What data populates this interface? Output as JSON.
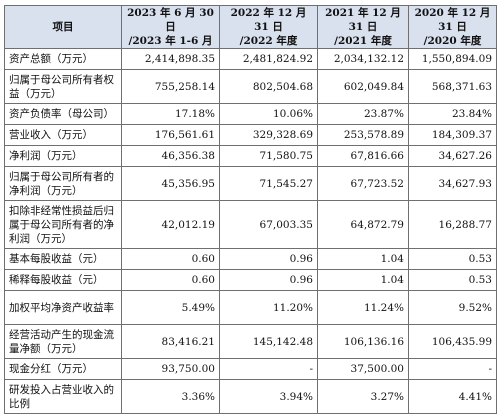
{
  "header": {
    "item": "项目",
    "columns": [
      {
        "line1": "2023 年 6 月 30 日",
        "line2": "/2023 年 1-6 月"
      },
      {
        "line1": "2022 年 12 月 31 日",
        "line2": "/2022 年度"
      },
      {
        "line1": "2021 年 12 月 31 日",
        "line2": "/2021 年度"
      },
      {
        "line1": "2020 年 12 月 31 日",
        "line2": "/2020 年度"
      }
    ]
  },
  "rows": [
    {
      "label": "资产总额（万元）",
      "values": [
        "2,414,898.35",
        "2,481,824.92",
        "2,034,132.12",
        "1,550,894.09"
      ]
    },
    {
      "label": "归属于母公司所有者权益（万元）",
      "values": [
        "755,258.14",
        "802,504.68",
        "602,049.84",
        "568,371.63"
      ]
    },
    {
      "label": "资产负债率（母公司）",
      "values": [
        "17.18%",
        "10.06%",
        "23.87%",
        "23.84%"
      ]
    },
    {
      "label": "营业收入（万元）",
      "values": [
        "176,561.61",
        "329,328.69",
        "253,578.89",
        "184,309.37"
      ]
    },
    {
      "label": "净利润（万元）",
      "values": [
        "46,356.38",
        "71,580.75",
        "67,816.66",
        "34,627.26"
      ]
    },
    {
      "label": "归属于母公司所有者的净利润（万元）",
      "values": [
        "45,356.95",
        "71,545.27",
        "67,723.52",
        "34,627.93"
      ]
    },
    {
      "label": "扣除非经常性损益后归属于母公司所有者的净利润（万元）",
      "values": [
        "42,012.19",
        "67,003.35",
        "64,872.79",
        "16,288.77"
      ]
    },
    {
      "label": "基本每股收益（元）",
      "values": [
        "0.60",
        "0.96",
        "1.04",
        "0.53"
      ]
    },
    {
      "label": "稀释每股收益（元）",
      "values": [
        "0.60",
        "0.96",
        "1.04",
        "0.53"
      ]
    },
    {
      "label": "加权平均净资产收益率",
      "values": [
        "5.49%",
        "11.20%",
        "11.24%",
        "9.52%"
      ]
    },
    {
      "label": "经营活动产生的现金流量净额（万元）",
      "values": [
        "83,416.21",
        "145,142.48",
        "106,136.16",
        "106,435.99"
      ]
    },
    {
      "label": "现金分红（万元）",
      "values": [
        "93,750.00",
        "-",
        "37,500.00",
        "-"
      ]
    },
    {
      "label": "研发投入占营业收入的比例",
      "values": [
        "3.36%",
        "3.94%",
        "3.27%",
        "4.41%"
      ]
    }
  ]
}
